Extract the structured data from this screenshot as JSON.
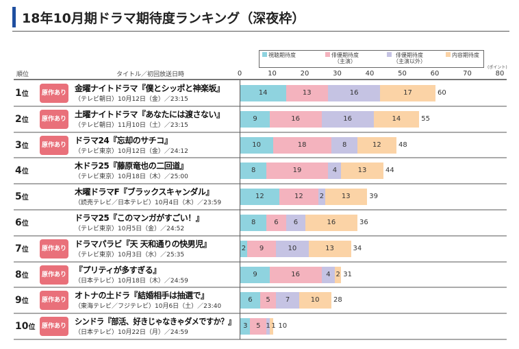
{
  "header": {
    "title": "18年10月期ドラマ期待度ランキング（深夜枠）"
  },
  "table_headers": {
    "rank": "順位",
    "title": "タイトル／初回放送日時",
    "unit": "(ポイント)"
  },
  "badge_label": "原作あり",
  "chart_data": {
    "type": "bar",
    "stacked": true,
    "orientation": "horizontal",
    "title": "18年10月期ドラマ期待度ランキング（深夜枠）",
    "xlabel": "(ポイント)",
    "xlim": [
      0,
      80
    ],
    "xticks": [
      "0",
      "10",
      "20",
      "30",
      "40",
      "50",
      "60",
      "70",
      "80"
    ],
    "legend_position": "top",
    "legend": [
      {
        "name": "視聴期待度",
        "color": "#8fd3df"
      },
      {
        "name": "俳優期待度（主演）",
        "color": "#f4b3be"
      },
      {
        "name": "俳優期待度（主演以外）",
        "color": "#c5c3e3"
      },
      {
        "name": "内容期待度",
        "color": "#fbd3a6"
      }
    ],
    "rows": [
      {
        "rank": "1",
        "unit": "位",
        "badge": true,
        "title": "金曜ナイトドラマ『僕とシッポと神楽坂』",
        "sub": "（テレビ朝日）10月12日（金）／23:15",
        "values": [
          14,
          13,
          16,
          17
        ],
        "total": 60
      },
      {
        "rank": "2",
        "unit": "位",
        "badge": true,
        "title": "土曜ナイトドラマ『あなたには渡さない』",
        "sub": "（テレビ朝日）11月10日（土）／23:15",
        "values": [
          9,
          16,
          16,
          14
        ],
        "total": 55
      },
      {
        "rank": "3",
        "unit": "位",
        "badge": true,
        "title": "ドラマ24『忘却のサチコ』",
        "sub": "（テレビ東京）10月12日（金）／24:12",
        "values": [
          10,
          18,
          8,
          12
        ],
        "total": 48
      },
      {
        "rank": "4",
        "unit": "位",
        "badge": false,
        "title": "木ドラ25『藤原竜也の二回道』",
        "sub": "（テレビ東京）10月18日（木）／25:00",
        "values": [
          8,
          19,
          4,
          13
        ],
        "total": 44
      },
      {
        "rank": "5",
        "unit": "位",
        "badge": false,
        "title": "木曜ドラマF『ブラックスキャンダル』",
        "sub": "（読売テレビ／日本テレビ）10月4日（木）／23:59",
        "values": [
          12,
          12,
          2,
          13
        ],
        "total": 39
      },
      {
        "rank": "6",
        "unit": "位",
        "badge": false,
        "title": "ドラマ25『このマンガがすごい！』",
        "sub": "（テレビ東京）10月5日（金）／24:52",
        "values": [
          8,
          6,
          6,
          16
        ],
        "total": 36
      },
      {
        "rank": "7",
        "unit": "位",
        "badge": true,
        "title": "ドラマパラビ『天 天和通りの快男児』",
        "sub": "（テレビ東京）10月3日（水）／25:35",
        "values": [
          2,
          9,
          10,
          13
        ],
        "total": 34
      },
      {
        "rank": "8",
        "unit": "位",
        "badge": true,
        "title": "『プリティが多すぎる』",
        "sub": "（日本テレビ）10月18日（木）／24:59",
        "values": [
          9,
          16,
          4,
          2
        ],
        "total": 31
      },
      {
        "rank": "9",
        "unit": "位",
        "badge": true,
        "title": "オトナの土ドラ『結婚相手は抽選で』",
        "sub": "（東海テレビ／フジテレビ）10月6日（土）／23:40",
        "values": [
          6,
          5,
          7,
          10
        ],
        "total": 28
      },
      {
        "rank": "10",
        "unit": "位",
        "badge": true,
        "title": "シンドラ『部活、好きじゃなきゃダメですか？』",
        "sub": "（日本テレビ）10月22日（月）／24:59",
        "values": [
          3,
          5,
          1,
          1
        ],
        "total": 10
      }
    ]
  }
}
